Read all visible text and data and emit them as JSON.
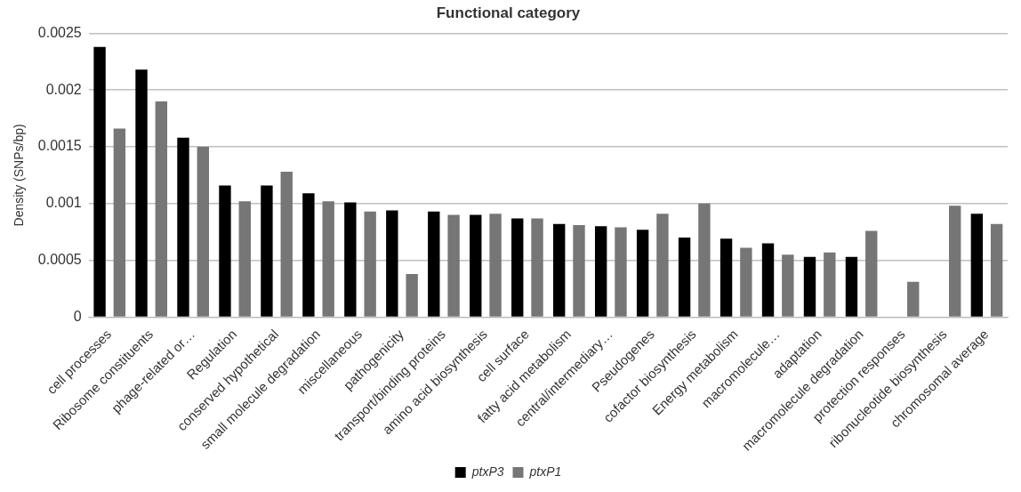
{
  "chart_data": {
    "type": "bar",
    "title": "Functional category",
    "ylabel": "Density (SNPs/bp)",
    "categories": [
      "cell processes",
      "Ribosome constituents",
      "phage-related or…",
      "Regulation",
      "conserved hypothetical",
      "small molecule degradation",
      "miscellaneous",
      "pathogenicity",
      "transport/binding proteins",
      "amino acid biosynthesis",
      "cell surface",
      "fatty acid metabolism",
      "central/intermediary…",
      "Pseudogenes",
      "cofactor biosynthesis",
      "Energy metabolism",
      "macromolecule…",
      "adaptation",
      "macromolecule degradation",
      "protection responses",
      "ribonucleotide biosynthesis",
      "chromosomal average"
    ],
    "series": [
      {
        "name": "ptxP3",
        "color": "#000000",
        "values": [
          0.00238,
          0.00218,
          0.00158,
          0.00116,
          0.00116,
          0.00109,
          0.00101,
          0.00094,
          0.00093,
          0.0009,
          0.00087,
          0.00082,
          0.0008,
          0.00077,
          0.0007,
          0.00069,
          0.00065,
          0.00053,
          0.00053,
          null,
          null,
          0.00091
        ]
      },
      {
        "name": "ptxP1",
        "color": "#767676",
        "values": [
          0.00166,
          0.0019,
          0.0015,
          0.00102,
          0.00128,
          0.00102,
          0.00093,
          0.00038,
          0.0009,
          0.00091,
          0.00087,
          0.00081,
          0.00079,
          0.00091,
          0.001,
          0.00061,
          0.00055,
          0.00057,
          0.00076,
          0.00031,
          0.00098,
          0.00082
        ]
      }
    ],
    "ylim": [
      0,
      0.0025
    ],
    "yticks": [
      0,
      0.0005,
      0.001,
      0.0015,
      0.002,
      0.0025
    ],
    "grid": "y",
    "legend": "bottom"
  }
}
